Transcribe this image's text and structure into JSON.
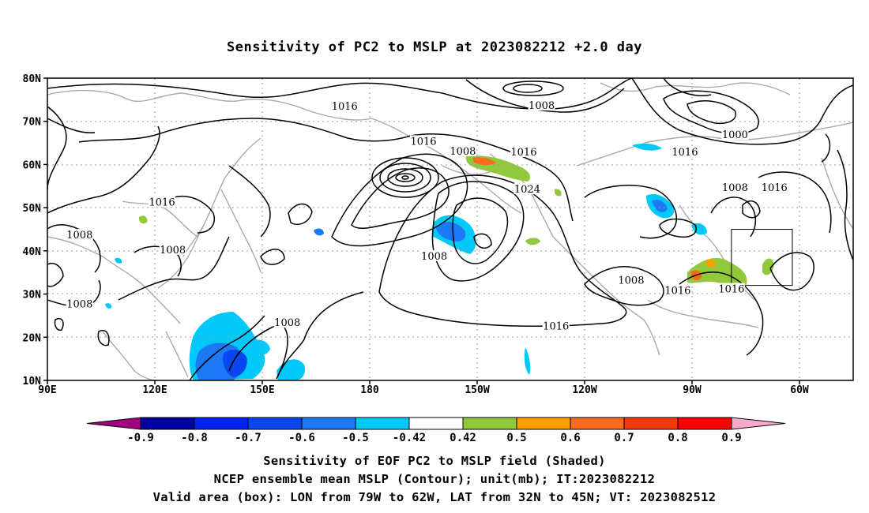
{
  "title": "Sensitivity of PC2 to MSLP at 2023082212 +2.0 day",
  "lat_labels": [
    "80N",
    "70N",
    "60N",
    "50N",
    "40N",
    "30N",
    "20N",
    "10N"
  ],
  "lon_labels": [
    "90E",
    "120E",
    "150E",
    "180",
    "150W",
    "120W",
    "90W",
    "60W"
  ],
  "contour_labels": [
    {
      "text": "1016",
      "lon": 173,
      "lat": 73.4
    },
    {
      "text": "1008",
      "lon": 228,
      "lat": 73.6
    },
    {
      "text": "1000",
      "lon": 282,
      "lat": 66.8
    },
    {
      "text": "1016",
      "lon": 195,
      "lat": 65.3
    },
    {
      "text": "1008",
      "lon": 206,
      "lat": 63.0
    },
    {
      "text": "1016",
      "lon": 223,
      "lat": 62.8
    },
    {
      "text": "1016",
      "lon": 268,
      "lat": 62.8
    },
    {
      "text": "1016",
      "lon": 122,
      "lat": 51.2
    },
    {
      "text": "1024",
      "lon": 224,
      "lat": 54.2
    },
    {
      "text": "1008",
      "lon": 282,
      "lat": 54.6
    },
    {
      "text": "1016",
      "lon": 293,
      "lat": 54.6
    },
    {
      "text": "1008",
      "lon": 99,
      "lat": 43.6
    },
    {
      "text": "1008",
      "lon": 125,
      "lat": 40.2
    },
    {
      "text": "1008",
      "lon": 198,
      "lat": 38.7
    },
    {
      "text": "1008",
      "lon": 253,
      "lat": 33.1
    },
    {
      "text": "1016",
      "lon": 266,
      "lat": 30.7
    },
    {
      "text": "1016",
      "lon": 281,
      "lat": 31.1
    },
    {
      "text": "1008",
      "lon": 99,
      "lat": 27.6
    },
    {
      "text": "1016",
      "lon": 232,
      "lat": 22.5
    },
    {
      "text": "1008",
      "lon": 157,
      "lat": 23.3
    }
  ],
  "colorbar": {
    "labels": [
      "-0.9",
      "-0.8",
      "-0.7",
      "-0.6",
      "-0.5",
      "-0.42",
      "0.42",
      "0.5",
      "0.6",
      "0.7",
      "0.8",
      "0.9"
    ],
    "colors": [
      "#a0007f",
      "#0000a0",
      "#0022ee",
      "#0a46f0",
      "#1c78f4",
      "#00c8f8",
      "#ffffff",
      "#92c83c",
      "#fca000",
      "#fb6a1e",
      "#f43a0c",
      "#fa0000",
      "#f7a8cb"
    ]
  },
  "valid_box": {
    "lon_min": 281,
    "lon_max": 298,
    "lat_min": 32,
    "lat_max": 45
  },
  "captions": {
    "line1": "Sensitivity of EOF PC2 to MSLP field (Shaded)",
    "line2": "NCEP ensemble mean MSLP (Contour); unit(mb); IT:2023082212",
    "line3": "Valid area (box): LON from 79W to 62W, LAT from 32N to 45N; VT: 2023082512"
  }
}
